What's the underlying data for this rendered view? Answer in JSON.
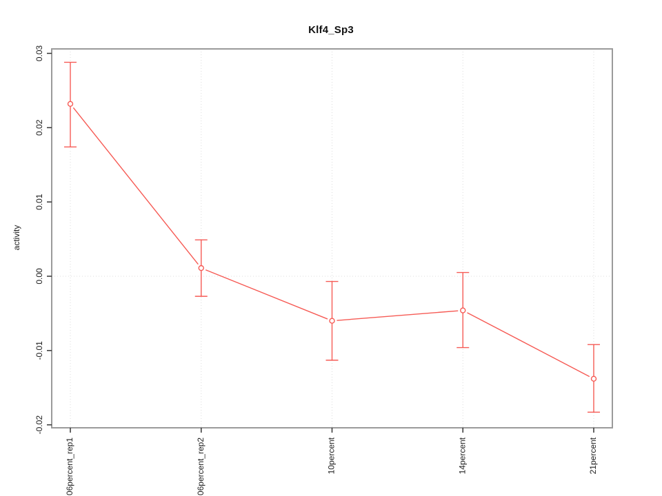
{
  "window": {
    "title": "Klf4_Sp3"
  },
  "chart_data": {
    "type": "line",
    "title": "Klf4_Sp3",
    "xlabel": "",
    "ylabel": "activity",
    "categories": [
      "06percent_rep1",
      "06percent_rep2",
      "10percent",
      "14percent",
      "21percent"
    ],
    "series": [
      {
        "name": "activity",
        "values": [
          0.0232,
          0.0011,
          -0.006,
          -0.0046,
          -0.0138
        ],
        "error_low": [
          0.0174,
          -0.0027,
          -0.0113,
          -0.0096,
          -0.0183
        ],
        "error_high": [
          0.0288,
          0.0049,
          -0.0007,
          0.0005,
          -0.0092
        ],
        "marker": "open-circle"
      }
    ],
    "ylim": [
      -0.0204,
      0.0306
    ],
    "yticks": [
      {
        "value": -0.02,
        "label": "-0.02"
      },
      {
        "value": -0.01,
        "label": "-0.01"
      },
      {
        "value": 0.0,
        "label": "0.00"
      },
      {
        "value": 0.01,
        "label": "0.01"
      },
      {
        "value": 0.02,
        "label": "0.02"
      },
      {
        "value": 0.03,
        "label": "0.03"
      }
    ],
    "grid": {
      "vertical_at_categories": true,
      "horizontal_lines_at": [
        0.0
      ],
      "style": "dotted"
    },
    "legend": {
      "visible": false
    },
    "colors": {
      "series": "#f65a54",
      "grid": "#dbdbdb",
      "box": "#9a9a9a",
      "tick": "#333333",
      "text": "#1c1c1c",
      "background": "#ffffff"
    }
  }
}
